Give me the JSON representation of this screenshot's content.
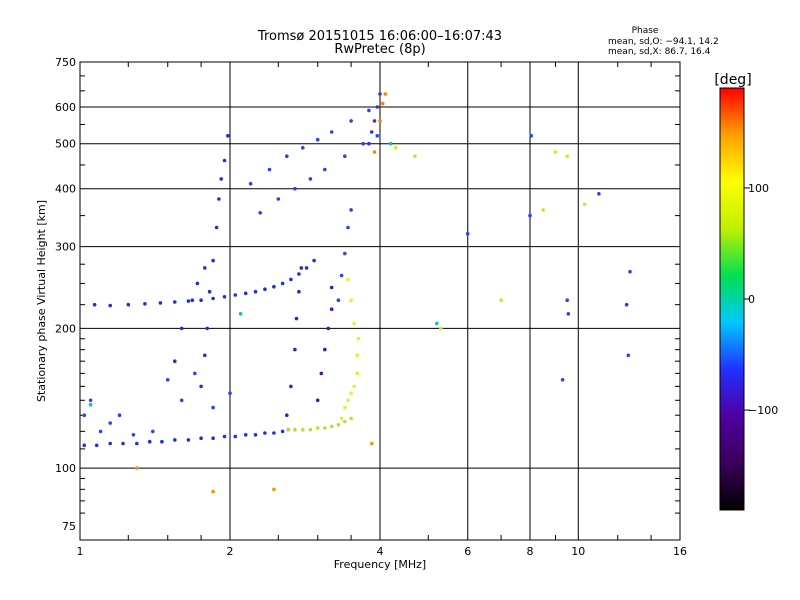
{
  "chart_data": {
    "type": "scatter",
    "title": "Tromsø 20151015 16:06:00–16:07:43",
    "subtitle": "RwPretec (8p)",
    "xlabel": "Frequency [MHz]",
    "ylabel": "Stationary phase Virtual Height [km]",
    "x_scale": "log",
    "y_scale": "log",
    "xlim": [
      1,
      16
    ],
    "ylim": [
      70,
      750
    ],
    "x_ticks": [
      1,
      2,
      4,
      6,
      8,
      10,
      16
    ],
    "y_ticks": [
      75,
      100,
      200,
      300,
      400,
      500,
      600,
      750
    ],
    "grid": true,
    "stats": {
      "title": "Phase",
      "line_o": "mean, sd,O: −94.1, 14.2",
      "line_x": "mean, sd,X:  86.7, 16.4"
    },
    "colorbar": {
      "label": "[deg]",
      "ticks": [
        100,
        0,
        -100
      ],
      "tick_labels": [
        "100",
        "0",
        "−100"
      ],
      "range": [
        -190,
        190
      ],
      "colormap": [
        "#000000",
        "#3a005a",
        "#5000a0",
        "#2030ff",
        "#00c8ff",
        "#00e050",
        "#c0f000",
        "#ffff00",
        "#ffa000",
        "#ff0000"
      ]
    },
    "series": [
      {
        "name": "",
        "color": "#1f2fe0",
        "x": [
          1.02,
          1.08,
          1.15,
          1.22,
          1.3,
          1.38,
          1.46,
          1.55,
          1.65,
          1.75,
          1.85,
          1.95,
          2.05,
          2.15,
          2.25,
          2.35,
          2.45,
          2.55,
          2.62
        ],
        "y": [
          112,
          112,
          113,
          113,
          113,
          114,
          114,
          115,
          115,
          116,
          116,
          117,
          117,
          118,
          118,
          119,
          119,
          120,
          121
        ]
      },
      {
        "name": "",
        "color": "#b8e030",
        "x": [
          2.62,
          2.7,
          2.8,
          2.9,
          3.0,
          3.1,
          3.2,
          3.3,
          3.4,
          3.5
        ],
        "y": [
          121,
          121,
          121,
          121,
          122,
          122,
          123,
          124,
          126,
          128
        ]
      },
      {
        "name": "",
        "color": "#ecf020",
        "x": [
          3.35,
          3.4,
          3.45,
          3.5,
          3.55,
          3.6,
          3.6,
          3.62,
          3.55,
          3.5,
          3.45
        ],
        "y": [
          128,
          135,
          140,
          145,
          150,
          160,
          175,
          190,
          205,
          230,
          255
        ]
      },
      {
        "name": "",
        "color": "#1f2fe0",
        "x": [
          1.07,
          1.15,
          1.25,
          1.35,
          1.45,
          1.55,
          1.65,
          1.75,
          1.85,
          1.95,
          2.05,
          2.15,
          2.25,
          2.35,
          2.45,
          2.55,
          2.65,
          2.75,
          2.85,
          2.95
        ],
        "y": [
          225,
          224,
          225,
          226,
          227,
          228,
          229,
          230,
          232,
          234,
          236,
          238,
          240,
          243,
          246,
          250,
          255,
          262,
          270,
          280
        ]
      },
      {
        "name": "",
        "color": "#1f2fe0",
        "x": [
          1.75,
          1.78,
          1.8,
          1.82,
          1.85,
          1.88,
          1.9,
          1.92,
          1.95,
          1.98
        ],
        "y": [
          150,
          175,
          200,
          240,
          280,
          330,
          380,
          420,
          460,
          520
        ]
      },
      {
        "name": "",
        "color": "#1f2fe0",
        "x": [
          1.55,
          1.6,
          1.68,
          1.72,
          1.78
        ],
        "y": [
          170,
          200,
          230,
          250,
          270
        ]
      },
      {
        "name": "",
        "color": "#3a20c0",
        "x": [
          2.6,
          2.65,
          2.7,
          2.72,
          2.75,
          2.78
        ],
        "y": [
          130,
          150,
          180,
          210,
          240,
          270
        ]
      },
      {
        "name": "",
        "color": "#5010b0",
        "x": [
          3.0,
          3.05,
          3.1,
          3.15,
          3.2,
          3.2
        ],
        "y": [
          140,
          160,
          180,
          200,
          220,
          245
        ]
      },
      {
        "name": "",
        "color": "#2a40ff",
        "x": [
          3.3,
          3.35,
          3.4,
          3.45,
          3.5
        ],
        "y": [
          230,
          260,
          290,
          330,
          360
        ]
      },
      {
        "name": "",
        "color": "#2a40ff",
        "x": [
          2.2,
          2.4,
          2.6,
          2.8,
          3.0,
          3.2,
          3.5,
          3.8
        ],
        "y": [
          410,
          440,
          470,
          490,
          510,
          530,
          560,
          590
        ]
      },
      {
        "name": "",
        "color": "#2a40ff",
        "x": [
          2.3,
          2.5,
          2.7,
          2.9,
          3.1,
          3.4,
          3.7,
          3.95
        ],
        "y": [
          355,
          380,
          400,
          420,
          440,
          470,
          500,
          520
        ]
      },
      {
        "name": "",
        "color": "#4030c0",
        "x": [
          3.8,
          3.85,
          3.9,
          3.95,
          4.0
        ],
        "y": [
          500,
          530,
          560,
          600,
          640
        ]
      },
      {
        "name": "",
        "color": "#ff8000",
        "x": [
          3.9,
          4.0,
          4.05,
          4.1
        ],
        "y": [
          480,
          560,
          610,
          640
        ]
      },
      {
        "name": "",
        "color": "#2a40ff",
        "x": [
          1.02,
          1.05,
          1.1,
          1.15,
          1.2,
          1.28,
          1.4,
          1.5,
          1.6,
          1.7,
          1.85,
          2.0
        ],
        "y": [
          130,
          140,
          120,
          125,
          130,
          118,
          120,
          155,
          140,
          160,
          135,
          145
        ]
      },
      {
        "name": "",
        "color": "#2a40ff",
        "x": [
          6.0,
          8.0,
          8.05,
          9.5,
          9.55,
          11.0,
          12.5,
          12.7,
          12.6,
          9.3
        ],
        "y": [
          320,
          350,
          520,
          230,
          215,
          390,
          225,
          265,
          175,
          155
        ]
      },
      {
        "name": "",
        "color": "#e0e020",
        "x": [
          4.3,
          4.7,
          5.3,
          7.0,
          8.5,
          9.0,
          9.5,
          10.3
        ],
        "y": [
          490,
          470,
          200,
          230,
          360,
          480,
          470,
          370
        ]
      },
      {
        "name": "",
        "color": "#ff9000",
        "x": [
          1.3,
          1.85,
          2.45,
          3.85
        ],
        "y": [
          100,
          89,
          90,
          113
        ]
      },
      {
        "name": "",
        "color": "#00c0d0",
        "x": [
          4.2,
          5.2,
          1.05,
          2.1
        ],
        "y": [
          500,
          205,
          137,
          215
        ]
      }
    ]
  }
}
